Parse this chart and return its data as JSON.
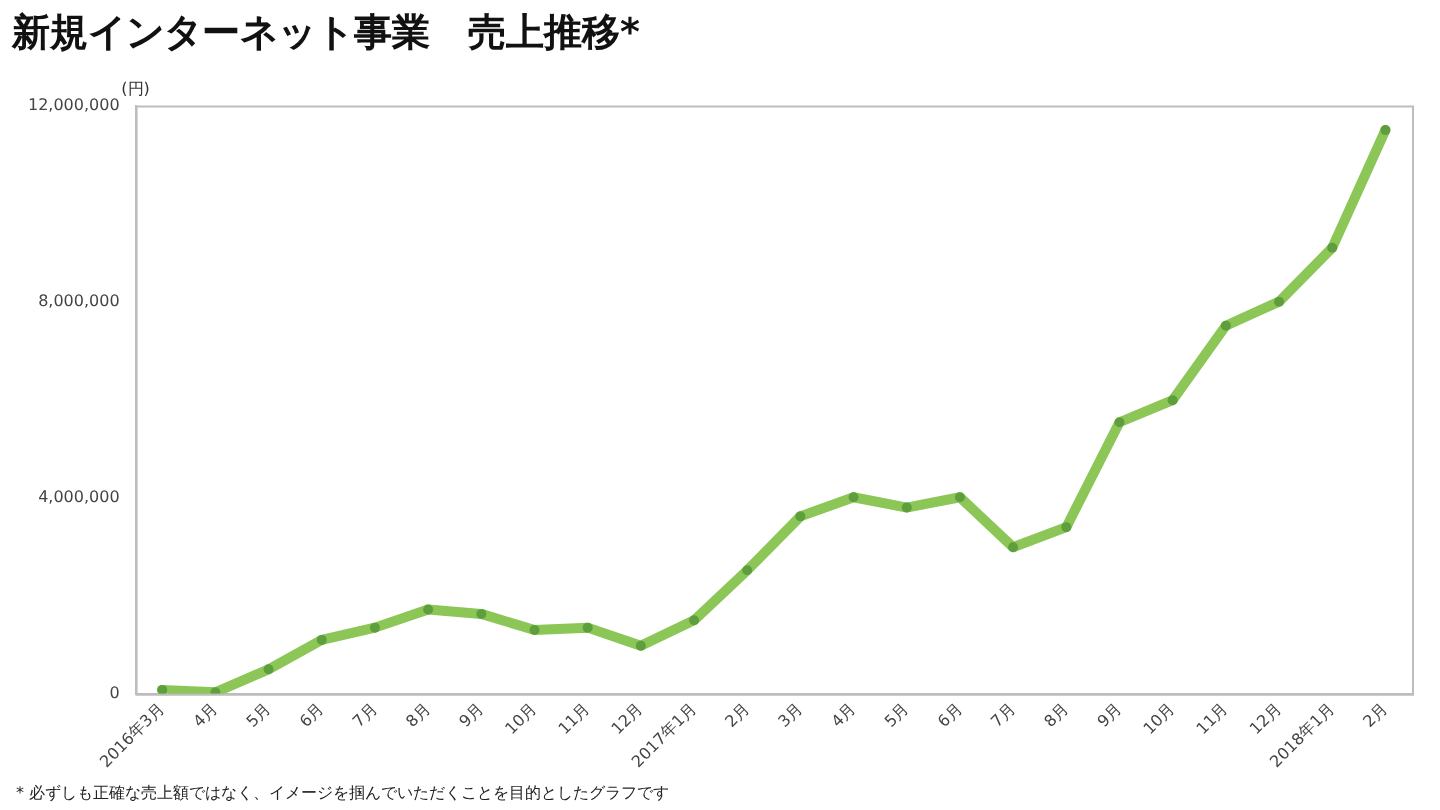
{
  "chart_data": {
    "type": "line",
    "title": "新規インターネット事業　売上推移*",
    "ylabel": "(円)",
    "categories": [
      "2016年3月",
      "4月",
      "5月",
      "6月",
      "7月",
      "8月",
      "9月",
      "10月",
      "11月",
      "12月",
      "2017年1月",
      "2月",
      "3月",
      "4月",
      "5月",
      "6月",
      "7月",
      "8月",
      "9月",
      "10月",
      "11月",
      "12月",
      "2018年1月",
      "2月"
    ],
    "series": [
      {
        "color": "#8cc657",
        "values": [
          80000,
          30000,
          500000,
          1100000,
          1350000,
          1720000,
          1630000,
          1300000,
          1350000,
          980000,
          1500000,
          2520000,
          3620000,
          4010000,
          3800000,
          4010000,
          2990000,
          3400000,
          5540000,
          5990000,
          7510000,
          8000000,
          9100000,
          11500000
        ]
      }
    ],
    "ylim": [
      0,
      12000000
    ],
    "yticks": [
      {
        "value": 0,
        "label": "0"
      },
      {
        "value": 4000000,
        "label": "4,000,000"
      },
      {
        "value": 8000000,
        "label": "8,000,000"
      },
      {
        "value": 12000000,
        "label": "12,000,000"
      }
    ],
    "grid": false,
    "legend": false,
    "marker": "circle",
    "line_style": "solid",
    "annotations": [
      "* 必ずしも正確な売上額ではなく、イメージを掴んでいただくことを目的としたグラフです"
    ]
  }
}
